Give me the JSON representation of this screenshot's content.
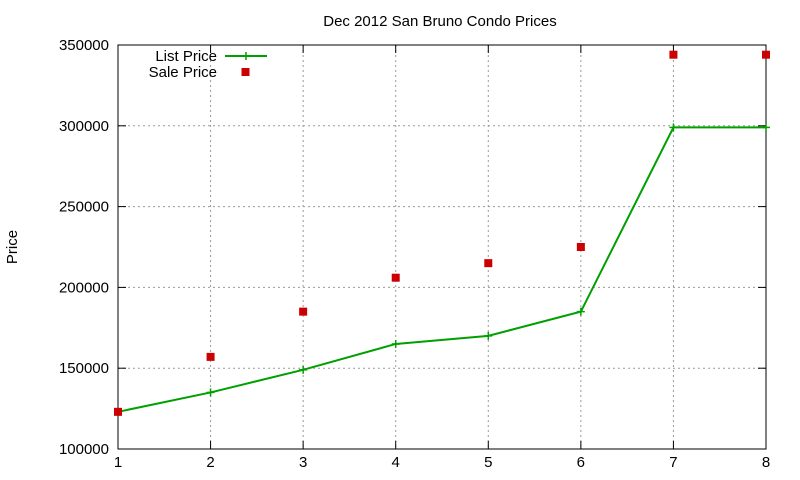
{
  "chart_data": {
    "type": "line",
    "title": "Dec 2012 San Bruno Condo Prices",
    "xlabel": "",
    "ylabel": "Price",
    "xlim": [
      1,
      8
    ],
    "ylim": [
      100000,
      350000
    ],
    "x_ticks": [
      "1",
      "2",
      "3",
      "4",
      "5",
      "6",
      "7",
      "8"
    ],
    "y_ticks": [
      "100000",
      "150000",
      "200000",
      "250000",
      "300000",
      "350000"
    ],
    "grid": true,
    "legend_position": "top-left",
    "series": [
      {
        "name": "List Price",
        "style": "line-with-plus-markers",
        "color": "#00a000",
        "x": [
          1,
          2,
          3,
          4,
          5,
          6,
          7,
          8
        ],
        "values": [
          123000,
          135000,
          149000,
          165000,
          170000,
          185000,
          299000,
          299000
        ]
      },
      {
        "name": "Sale Price",
        "style": "square-markers",
        "color": "#cc0000",
        "x": [
          1,
          2,
          3,
          4,
          5,
          6,
          7,
          8
        ],
        "values": [
          123000,
          157000,
          185000,
          206000,
          215000,
          225000,
          344000,
          344000
        ]
      }
    ]
  }
}
